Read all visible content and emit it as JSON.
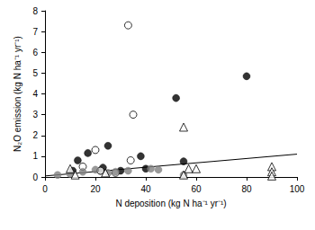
{
  "chart_data": {
    "type": "scatter",
    "xlabel": "N deposition (kg N ha⁻¹ yr⁻¹)",
    "ylabel": "N₂O emission (kg N ha⁻¹ yr⁻¹)",
    "xlim": [
      0,
      100
    ],
    "xticks": [
      0,
      20,
      40,
      60,
      80,
      100
    ],
    "ylim": [
      0,
      8
    ],
    "yticks": [
      0,
      1,
      2,
      3,
      4,
      5,
      6,
      7,
      8
    ],
    "grid": false,
    "series": [
      {
        "type": "scatter",
        "marker": "circle",
        "color": "#000000",
        "x": [
          11,
          13,
          17,
          22,
          23,
          25,
          30,
          38,
          40,
          52,
          55,
          80
        ],
        "values": [
          0.3,
          0.8,
          1.15,
          0.3,
          0.45,
          1.5,
          0.3,
          1.0,
          0.4,
          3.8,
          0.75,
          4.85
        ]
      },
      {
        "type": "scatter",
        "marker": "open_circle",
        "color": "#000000",
        "x": [
          15,
          20,
          22,
          28,
          33,
          34,
          35
        ],
        "values": [
          0.5,
          1.3,
          0.3,
          0.2,
          7.3,
          0.8,
          3.0
        ]
      },
      {
        "type": "scatter",
        "marker": "circle",
        "color": "#808080",
        "x": [
          5,
          10,
          15,
          20,
          25,
          28,
          33,
          42,
          45,
          55
        ],
        "values": [
          0.1,
          0.15,
          0.25,
          0.35,
          0.2,
          0.25,
          0.3,
          0.4,
          0.35,
          0.1
        ]
      },
      {
        "type": "scatter",
        "marker": "open_triangle",
        "color": "#000000",
        "x": [
          10,
          12,
          24,
          55,
          55,
          57,
          60,
          90,
          90,
          90
        ],
        "values": [
          0.4,
          0.1,
          0.2,
          2.4,
          0.1,
          0.4,
          0.4,
          0.5,
          0.25,
          0.05
        ]
      },
      {
        "type": "line",
        "line_style": "solid",
        "color": "#000000",
        "x": [
          0,
          100
        ],
        "values": [
          0.05,
          1.1
        ]
      }
    ]
  }
}
